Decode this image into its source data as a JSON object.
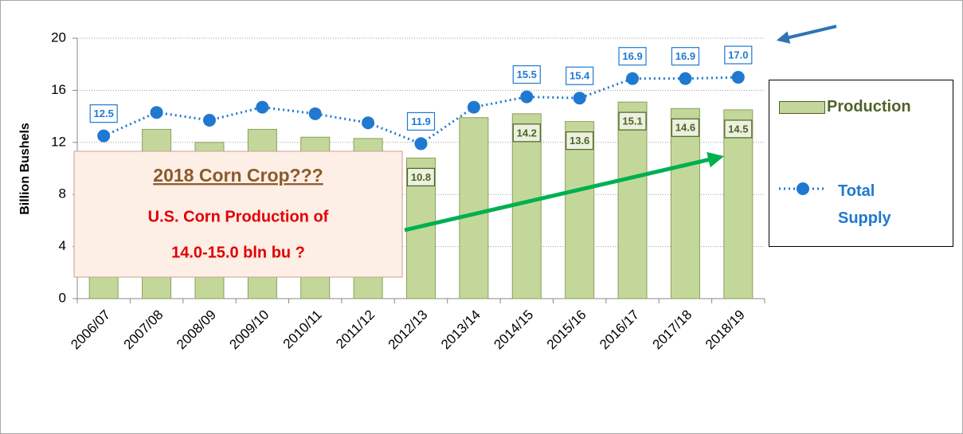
{
  "chart_data": {
    "type": "bar",
    "y_axis_label": "Billion Bushels",
    "categories": [
      "2006/07",
      "2007/08",
      "2008/09",
      "2009/10",
      "2010/11",
      "2011/12",
      "2012/13",
      "2013/14",
      "2014/15",
      "2015/16",
      "2016/17",
      "2017/18",
      "2018/19"
    ],
    "series": [
      {
        "name": "Production",
        "type": "bar",
        "color": "#c4d79b",
        "values": [
          10.5,
          13.0,
          12.0,
          13.0,
          12.4,
          12.3,
          10.8,
          13.9,
          14.2,
          13.6,
          15.1,
          14.6,
          14.5
        ],
        "value_labels": [
          null,
          null,
          null,
          null,
          null,
          null,
          "10.8",
          null,
          "14.2",
          "13.6",
          "15.1",
          "14.6",
          "14.5"
        ]
      },
      {
        "name": "Total Supply",
        "type": "line",
        "color": "#2079d0",
        "values": [
          12.5,
          14.3,
          13.7,
          14.7,
          14.2,
          13.5,
          11.9,
          14.7,
          15.5,
          15.4,
          16.9,
          16.9,
          17.0
        ],
        "value_labels": [
          "12.5",
          null,
          null,
          null,
          null,
          null,
          "11.9",
          null,
          "15.5",
          "15.4",
          "16.9",
          "16.9",
          "17.0"
        ]
      }
    ],
    "ylim": [
      0,
      20
    ],
    "yticks": [
      0,
      4,
      8,
      12,
      16,
      20
    ],
    "grid": true,
    "annotations": [
      "2018 Corn Crop???",
      "U.S. Corn Production of",
      "14.0-15.0 bln bu ?"
    ]
  }
}
